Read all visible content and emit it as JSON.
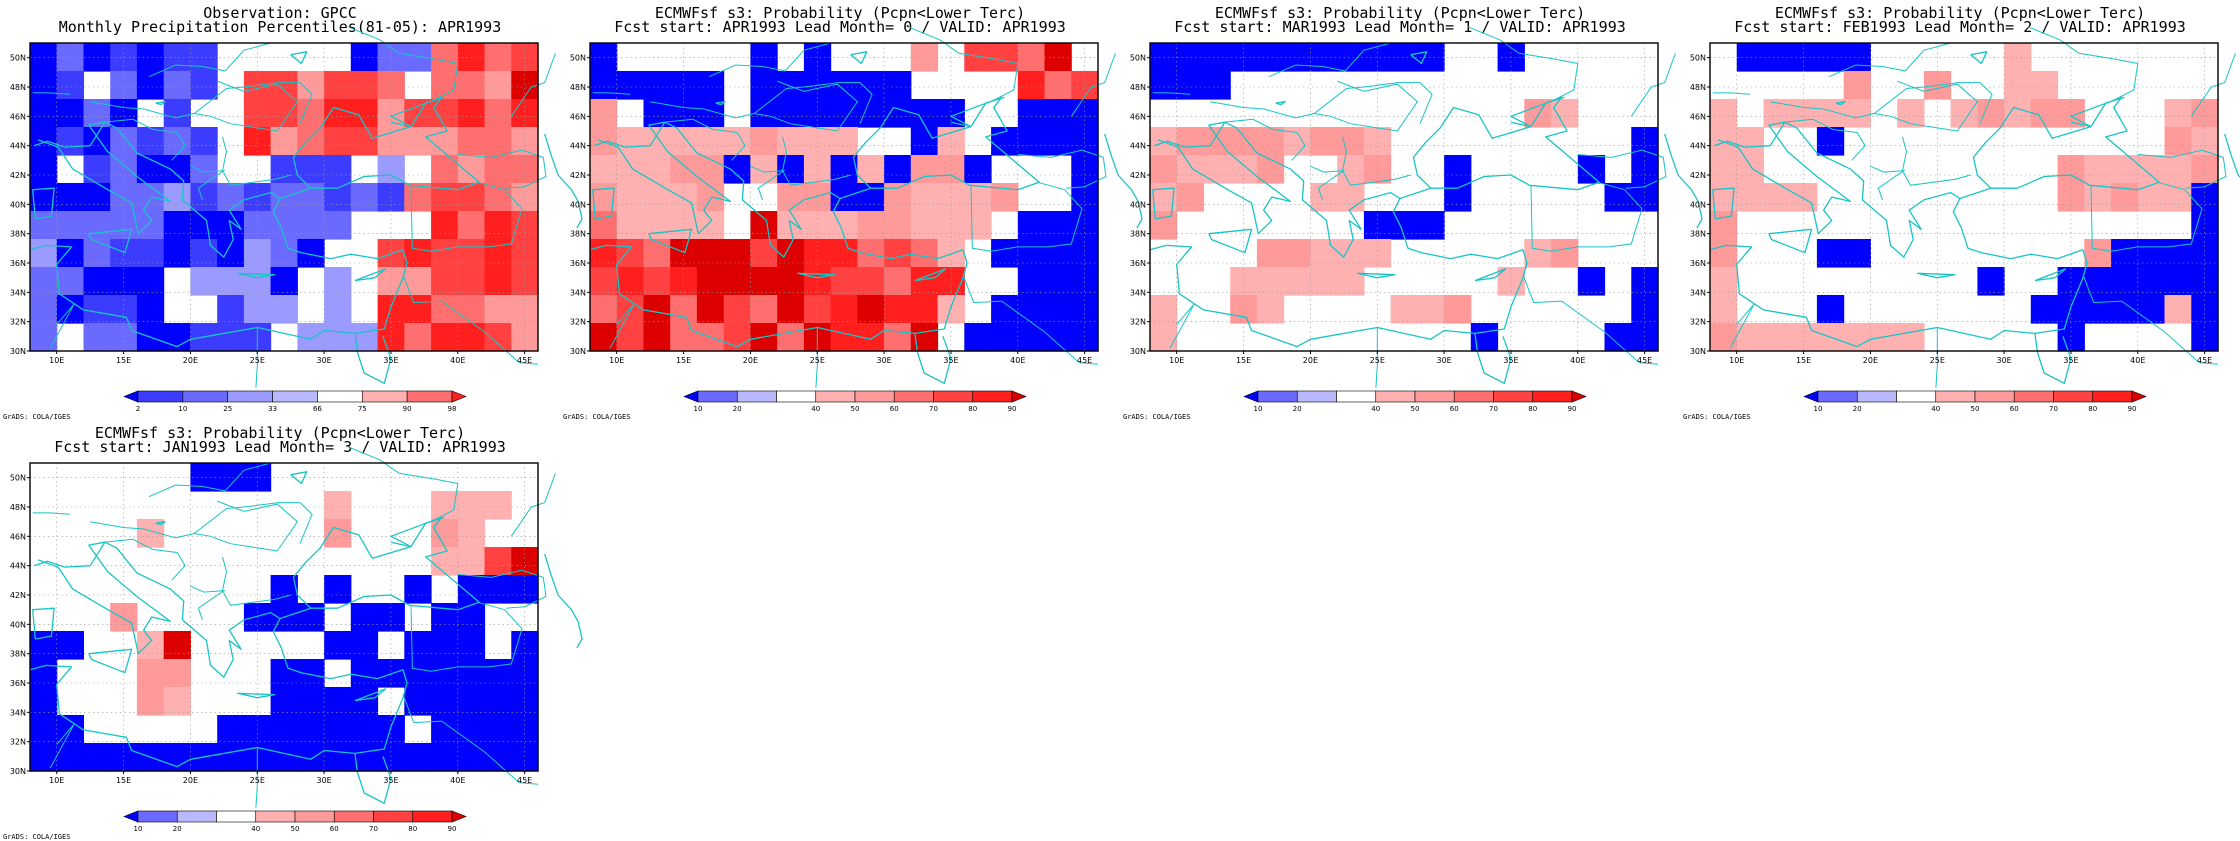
{
  "figure_credit": "GrADS: COLA/IGES",
  "map": {
    "projection": "lat-lon",
    "region": "Mediterranean / Black Sea",
    "lon_range": [
      8,
      46
    ],
    "lat_range": [
      30,
      51
    ],
    "cell_size_deg": 2.5,
    "lon_ticks": [
      "10E",
      "15E",
      "20E",
      "25E",
      "30E",
      "35E",
      "40E",
      "45E"
    ],
    "lat_ticks": [
      "30N",
      "32N",
      "34N",
      "36N",
      "38N",
      "40N",
      "42N",
      "44N",
      "46N",
      "48N",
      "50N"
    ],
    "gridlines": "dotted",
    "coastline_color": "#19c4c6"
  },
  "colors": {
    "blue": [
      "#0000ff",
      "#3c3cff",
      "#6a6aff",
      "#9b9bff",
      "#b9b9ff"
    ],
    "red": [
      "#ffb1b1",
      "#ff9a9a",
      "#ff6f6f",
      "#ff4141",
      "#ff1f1f",
      "#dd0000"
    ],
    "missing": "#ffffff"
  },
  "panels": [
    {
      "id": "obs",
      "title_line1": "Observation: GPCC",
      "title_line2": "Monthly Precipitation Percentiles(81-05): APR1993",
      "colorbar_type": "percentile",
      "colorbar_labels": [
        "2",
        "10",
        "25",
        "33",
        "66",
        "75",
        "90",
        "98"
      ],
      "colorbar_colors": [
        "#0000ff",
        "#3c3cff",
        "#6a6aff",
        "#9b9bff",
        "#b9b9ff",
        "#ffffff",
        "#ffb1b1",
        "#ff6f6f",
        "#ff1f1f"
      ],
      "grid": [
        "BBBBBBB.....BBBRRRR",
        "BB.CBBB.RRRRRR.RRRQ",
        "BBCB.B..RRRRRRRRRRR",
        "BBBBBBB.RRRRRRRRRRR",
        "B.BCBBC..BBB.D.RRRR",
        "BBBCCDBBBBBBBBRRRRR",
        "CCCCCBBBCCCB...RRRR",
        "DBBBBBBBDBB..RRRRRR",
        "CBBBB.DDDB.D.RRRRRR",
        "BBBBB..BDD.D.RRRRRR",
        "C.BBBBBBB.DDDRRRRRR"
      ]
    },
    {
      "id": "lead0",
      "title_line1": "ECMWFsf s3: Probability (Pcpn<Lower Terc)",
      "title_line2": "Fcst start: APR1993  Lead Month= 0 / VALID: APR1993",
      "colorbar_type": "probability",
      "colorbar_labels": [
        "10",
        "20",
        "40",
        "50",
        "60",
        "70",
        "80",
        "90"
      ],
      "colorbar_colors": [
        "#0000ff",
        "#6a6aff",
        "#b9b9ff",
        "#ffffff",
        "#ffb1b1",
        "#ff9a9a",
        "#ff6f6f",
        "#ff4141",
        "#ff1f1f",
        "#dd0000"
      ],
      "grid": [
        "B.....B.B...P.RRRR.",
        "BBBBB.BBBBBB....RRR",
        "P.BBB.BBBBBBBB..BBB",
        "PPPPPPPPPP..BP.BBBB",
        "PPPPPBPBPBPBPPB...B",
        "PPPPP..PPBBPPPPP..B",
        "RPPPP.RPPPPPPPP.BBB",
        "RRRRRRRRRRRRRP.BBBB",
        "RRRRRRRRRRRRRR..BBB",
        "RRRRRRRRRRRRRP.BBBB",
        "RRRRRRRRRRRRR.BBBBB"
      ]
    },
    {
      "id": "lead1",
      "title_line1": "ECMWFsf s3: Probability (Pcpn<Lower Terc)",
      "title_line2": "Fcst start: MAR1993  Lead Month= 1 / VALID: APR1993",
      "colorbar_type": "probability",
      "colorbar_labels": [
        "10",
        "20",
        "40",
        "50",
        "60",
        "70",
        "80",
        "90"
      ],
      "colorbar_colors": [
        "#0000ff",
        "#6a6aff",
        "#b9b9ff",
        "#ffffff",
        "#ffb1b1",
        "#ff9a9a",
        "#ff6f6f",
        "#ff4141",
        "#ff1f1f",
        "#dd0000"
      ],
      "grid": [
        "BBBBBBBBBBB..B.....",
        "BBB................",
        "..............PP...",
        "PPPPPPPPP.........B",
        "PPPPP..PP..B....B.B",
        "PP....PP...B.....BB",
        "P.......BBB........",
        "....PPPPP.....PP...",
        "...PPPPP.....P..B.B",
        "P..PP....PPP......B",
        "P...........B....BB"
      ]
    },
    {
      "id": "lead2",
      "title_line1": "ECMWFsf s3: Probability (Pcpn<Lower Terc)",
      "title_line2": "Fcst start: FEB1993  Lead Month= 2 / VALID: APR1993",
      "colorbar_type": "probability",
      "colorbar_labels": [
        "10",
        "20",
        "40",
        "50",
        "60",
        "70",
        "80",
        "90"
      ],
      "colorbar_colors": [
        "#0000ff",
        "#6a6aff",
        "#b9b9ff",
        "#ffffff",
        "#ffb1b1",
        "#ff9a9a",
        "#ff6f6f",
        "#ff4141",
        "#ff1f1f",
        "#dd0000"
      ],
      "grid": [
        ".BBBBB.....P.......",
        ".....P..P..PP......",
        "P.PPPP.P.PPPPP...PP",
        "PP..B............PP",
        "PP...........PPPPPP",
        "PPPP.........PPPPPB",
        "P.................B",
        "P...BB........PBBBB",
        "P.........B..BBBBBB",
        "P...B.......BBBBBPB",
        "PPPPPPPP.....B....B"
      ]
    },
    {
      "id": "lead3",
      "title_line1": "ECMWFsf s3: Probability (Pcpn<Lower Terc)",
      "title_line2": "Fcst start: JAN1993  Lead Month= 3 / VALID: APR1993",
      "colorbar_type": "probability",
      "colorbar_labels": [
        "10",
        "20",
        "40",
        "50",
        "60",
        "70",
        "80",
        "90"
      ],
      "colorbar_colors": [
        "#0000ff",
        "#6a6aff",
        "#b9b9ff",
        "#ffffff",
        "#ffb1b1",
        "#ff9a9a",
        "#ff6f6f",
        "#ff4141",
        "#ff1f1f",
        "#dd0000"
      ],
      "grid": [
        "......BBB..........",
        "...........P...PPP.",
        "....P......P...PP..",
        "...............PPRR",
        ".........B.B..B.BBB",
        "...P....BBB.BB.BB..",
        "BB..PR.....BB.BBB.B",
        "B...PP...BB.BBBBBBB",
        "B...PP...BBBB.BBBBB",
        "BB.....BBBBBBB.BBBB",
        "BBBBBBBBBBBBBBBBBBB"
      ]
    }
  ]
}
